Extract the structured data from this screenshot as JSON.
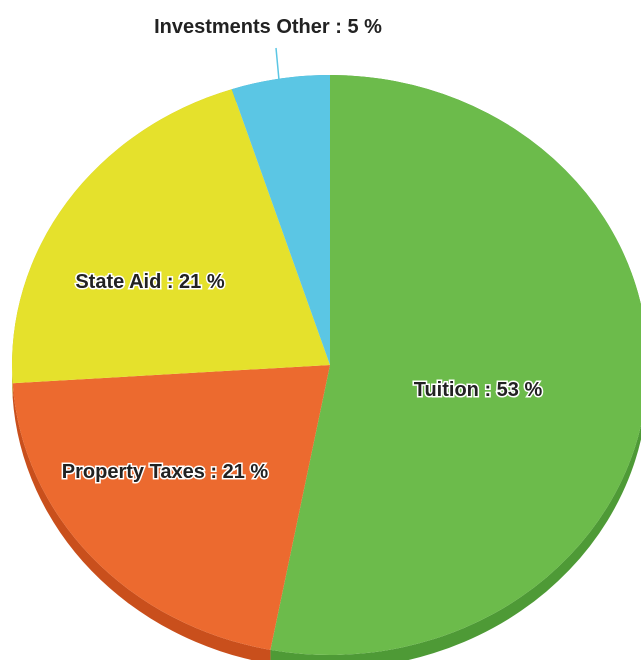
{
  "chart_data": {
    "type": "pie",
    "title": "",
    "slices": [
      {
        "label": "Tuition",
        "value": 53,
        "display": "Tuition : 53 %",
        "color": "#6cbb4b",
        "shade": "#4e9a36"
      },
      {
        "label": "Property Taxes",
        "value": 21,
        "display": "Property Taxes : 21 %",
        "color": "#ec6a2f",
        "shade": "#c94f1c"
      },
      {
        "label": "State Aid",
        "value": 21,
        "display": "State Aid : 21 %",
        "color": "#e5e12c",
        "shade": "#bdb91e"
      },
      {
        "label": "Investments Other",
        "value": 5,
        "display": "Investments Other : 5 %",
        "color": "#5bc6e4",
        "shade": "#3aa3c2"
      }
    ],
    "legend": "none",
    "start_angle_deg": 0,
    "direction": "clockwise"
  }
}
